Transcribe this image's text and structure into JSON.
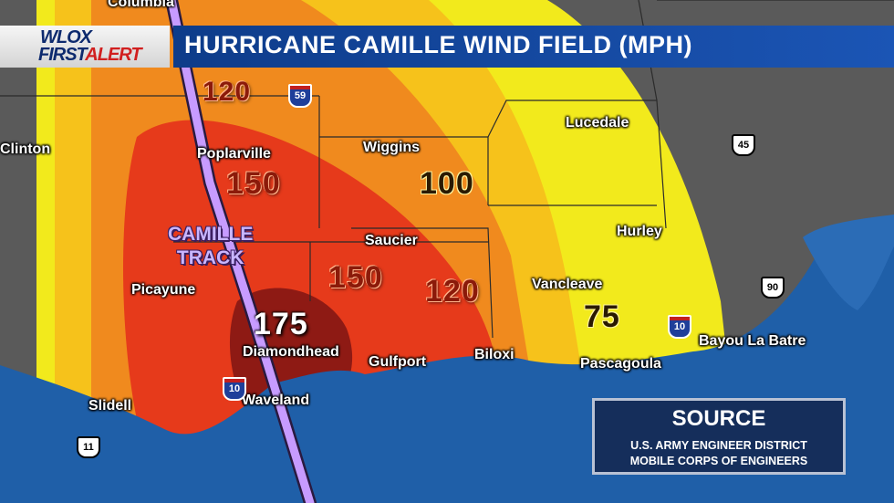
{
  "header": {
    "logo_line1": "WLOX",
    "logo_first": "FIRST",
    "logo_alert": "ALERT",
    "title": "HURRICANE CAMILLE WIND FIELD (MPH)"
  },
  "cities": {
    "columbia": "Columbia",
    "clinton": "Clinton",
    "poplarville": "Poplarville",
    "wiggins": "Wiggins",
    "lucedale": "Lucedale",
    "hurley": "Hurley",
    "saucier": "Saucier",
    "picayune": "Picayune",
    "vancleave": "Vancleave",
    "diamondhead": "Diamondhead",
    "gulfport": "Gulfport",
    "biloxi": "Biloxi",
    "pascagoula": "Pascagoula",
    "bayou_la_batre": "Bayou La Batre",
    "slidell": "Slidell",
    "waveland": "Waveland"
  },
  "wind_labels": {
    "w120_north": "120",
    "w150_north": "150",
    "w100": "100",
    "w150_central": "150",
    "w120_east": "120",
    "w75": "75",
    "w175": "175"
  },
  "track_label": {
    "line1": "CAMILLE",
    "line2": "TRACK"
  },
  "shields": {
    "i59": "59",
    "i10_west": "10",
    "i10_east": "10",
    "us45": "45",
    "us90": "90",
    "us11": "11"
  },
  "source": {
    "title": "SOURCE",
    "line1": "U.S. ARMY ENGINEER DISTRICT",
    "line2": "MOBILE CORPS OF ENGINEERS"
  },
  "colors": {
    "zone_75": "#f2ea1c",
    "zone_100": "#f6c21b",
    "zone_120": "#f08a1e",
    "zone_150": "#e63a1b",
    "zone_175": "#8e1a14",
    "water": "#1f5fa8",
    "land": "#5a5a5a",
    "track": "#c79bff",
    "header_blue": "#0e3c8a"
  }
}
